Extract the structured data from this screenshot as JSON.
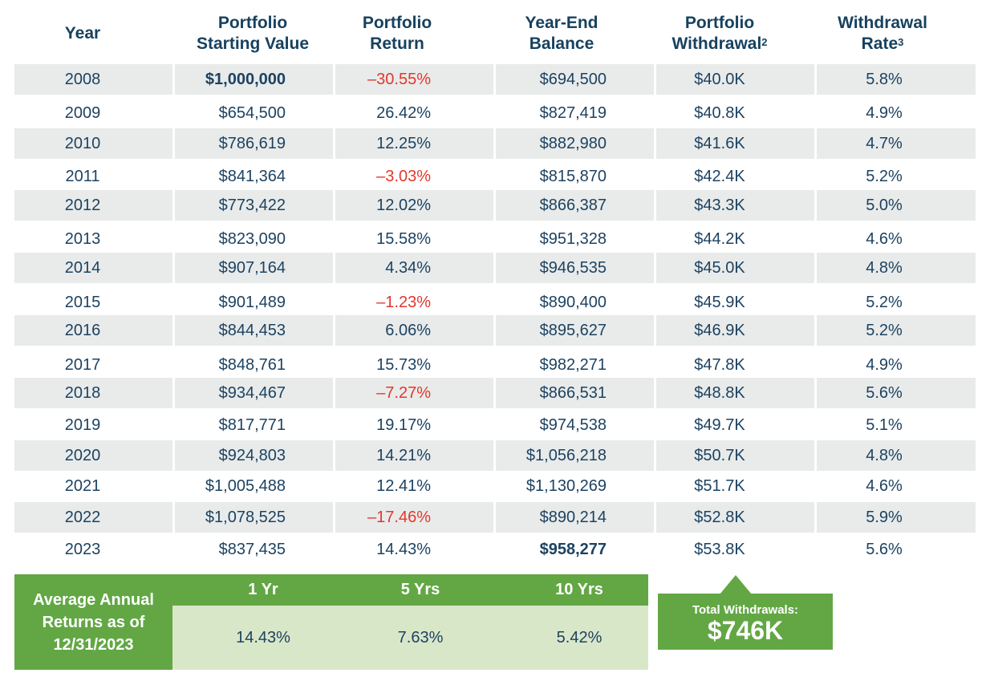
{
  "headers": {
    "year": "Year",
    "start": [
      "Portfolio",
      "Starting Value"
    ],
    "return": [
      "Portfolio",
      "Return"
    ],
    "balance": [
      "Year-End",
      "Balance"
    ],
    "withdrawal": [
      "Portfolio",
      "Withdrawal",
      "2"
    ],
    "rate": [
      "Withdrawal",
      "Rate",
      "3"
    ]
  },
  "colors": {
    "text": "#1d4261",
    "negative": "#e2382d",
    "green": "#62a744",
    "light_green": "#d9e7c9",
    "row_shade": "#e8ebea"
  },
  "rows": [
    {
      "year": "2008",
      "start": "$1,000,000",
      "return": "–30.55%",
      "balance": "$694,500",
      "withdrawal": "$40.0K",
      "rate": "5.8%"
    },
    {
      "year": "2009",
      "start": "$654,500",
      "return": "26.42%",
      "balance": "$827,419",
      "withdrawal": "$40.8K",
      "rate": "4.9%"
    },
    {
      "year": "2010",
      "start": "$786,619",
      "return": "12.25%",
      "balance": "$882,980",
      "withdrawal": "$41.6K",
      "rate": "4.7%"
    },
    {
      "year": "2011",
      "start": "$841,364",
      "return": "–3.03%",
      "balance": "$815,870",
      "withdrawal": "$42.4K",
      "rate": "5.2%"
    },
    {
      "year": "2012",
      "start": "$773,422",
      "return": "12.02%",
      "balance": "$866,387",
      "withdrawal": "$43.3K",
      "rate": "5.0%"
    },
    {
      "year": "2013",
      "start": "$823,090",
      "return": "15.58%",
      "balance": "$951,328",
      "withdrawal": "$44.2K",
      "rate": "4.6%"
    },
    {
      "year": "2014",
      "start": "$907,164",
      "return": "4.34%",
      "balance": "$946,535",
      "withdrawal": "$45.0K",
      "rate": "4.8%"
    },
    {
      "year": "2015",
      "start": "$901,489",
      "return": "–1.23%",
      "balance": "$890,400",
      "withdrawal": "$45.9K",
      "rate": "5.2%"
    },
    {
      "year": "2016",
      "start": "$844,453",
      "return": "6.06%",
      "balance": "$895,627",
      "withdrawal": "$46.9K",
      "rate": "5.2%"
    },
    {
      "year": "2017",
      "start": "$848,761",
      "return": "15.73%",
      "balance": "$982,271",
      "withdrawal": "$47.8K",
      "rate": "4.9%"
    },
    {
      "year": "2018",
      "start": "$934,467",
      "return": "–7.27%",
      "balance": "$866,531",
      "withdrawal": "$48.8K",
      "rate": "5.6%"
    },
    {
      "year": "2019",
      "start": "$817,771",
      "return": "19.17%",
      "balance": "$974,538",
      "withdrawal": "$49.7K",
      "rate": "5.1%"
    },
    {
      "year": "2020",
      "start": "$924,803",
      "return": "14.21%",
      "balance": "$1,056,218",
      "withdrawal": "$50.7K",
      "rate": "4.8%"
    },
    {
      "year": "2021",
      "start": "$1,005,488",
      "return": "12.41%",
      "balance": "$1,130,269",
      "withdrawal": "$51.7K",
      "rate": "4.6%"
    },
    {
      "year": "2022",
      "start": "$1,078,525",
      "return": "–17.46%",
      "balance": "$890,214",
      "withdrawal": "$52.8K",
      "rate": "5.9%"
    },
    {
      "year": "2023",
      "start": "$837,435",
      "return": "14.43%",
      "balance": "$958,277",
      "withdrawal": "$53.8K",
      "rate": "5.6%"
    }
  ],
  "average": {
    "label": "Average Annual Returns as of 12/31/2023",
    "periods": [
      "1 Yr",
      "5 Yrs",
      "10 Yrs"
    ],
    "values": [
      "14.43%",
      "7.63%",
      "5.42%"
    ]
  },
  "total": {
    "label": "Total Withdrawals:",
    "value": "$746K"
  }
}
